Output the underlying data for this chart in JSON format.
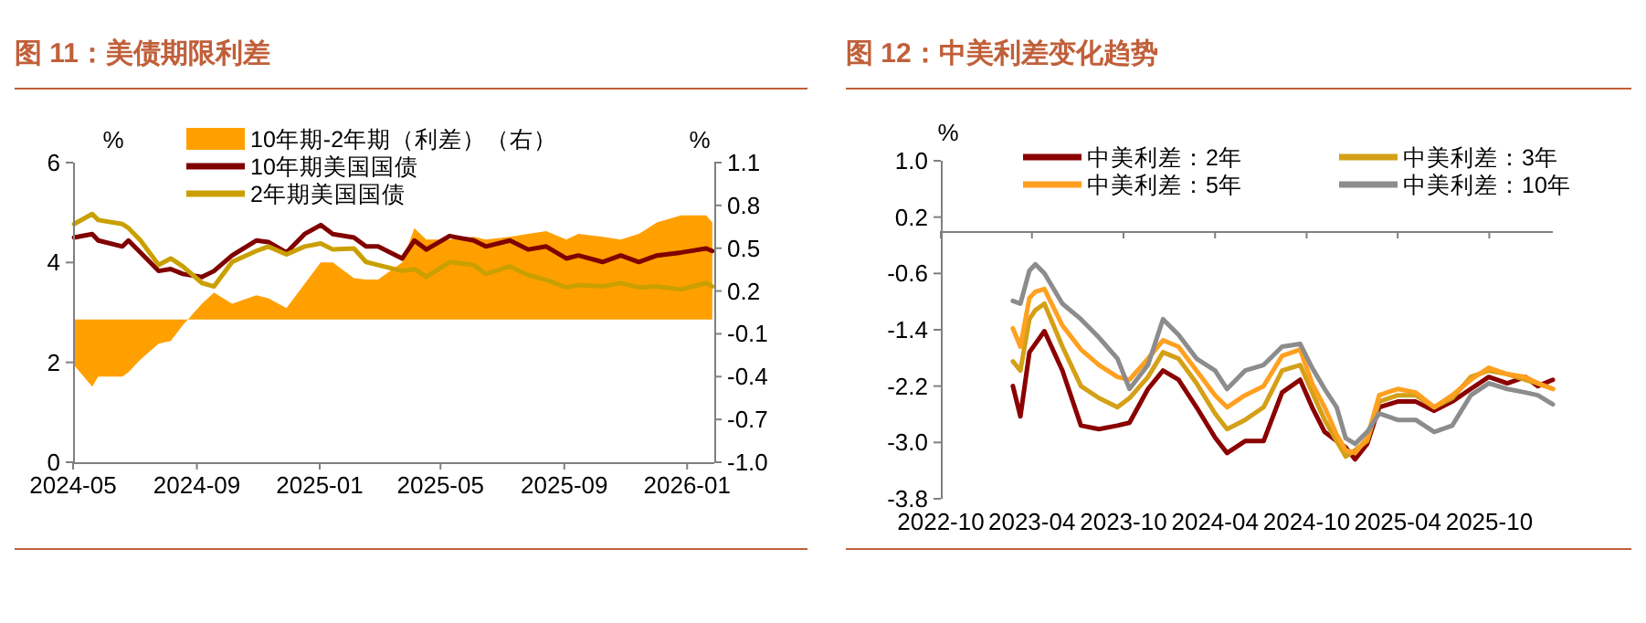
{
  "chart_data": [
    {
      "type": "line",
      "title": "图 11：美债期限利差",
      "ylabel": "%",
      "y2label": "%",
      "legend": "top",
      "x": [
        "2024-05-02",
        "2024-05-20",
        "2024-05-26",
        "2024-06-19",
        "2024-06-25",
        "2024-07-07",
        "2024-07-25",
        "2024-08-06",
        "2024-08-18",
        "2024-09-06",
        "2024-09-18",
        "2024-10-06",
        "2024-10-30",
        "2024-11-11",
        "2024-11-29",
        "2024-12-17",
        "2025-01-02",
        "2025-01-14",
        "2025-02-04",
        "2025-02-16",
        "2025-02-28",
        "2025-03-24",
        "2025-04-05",
        "2025-04-17",
        "2025-05-10",
        "2025-06-03",
        "2025-06-15",
        "2025-07-09",
        "2025-07-27",
        "2025-08-14",
        "2025-09-03",
        "2025-09-15",
        "2025-10-09",
        "2025-10-27",
        "2025-11-14",
        "2025-12-02",
        "2025-12-26",
        "2026-01-20",
        "2026-01-26"
      ],
      "xlim": [
        "2024-05-01",
        "2026-01-28"
      ],
      "xticks": [
        "2024-05",
        "2024-09",
        "2025-01",
        "2025-05",
        "2025-09",
        "2026-01"
      ],
      "ylim": [
        0,
        6
      ],
      "yticks": [
        0,
        2,
        4,
        6
      ],
      "y2lim": [
        -1.0,
        1.1
      ],
      "y2ticks": [
        {
          "value": -1.0,
          "label": "-1.0"
        },
        -0.7,
        -0.4,
        -0.1,
        0.2,
        0.5,
        0.8,
        1.1
      ],
      "series": [
        {
          "name": "10年期-2年期（利差）（右）",
          "type": "area",
          "axis": "y2",
          "color": "#ffa000",
          "values": [
            -0.32,
            -0.47,
            -0.4,
            -0.4,
            -0.37,
            -0.28,
            -0.17,
            -0.15,
            -0.04,
            0.11,
            0.19,
            0.11,
            0.17,
            0.15,
            0.08,
            0.25,
            0.4,
            0.4,
            0.29,
            0.28,
            0.28,
            0.4,
            0.64,
            0.56,
            0.56,
            0.58,
            0.56,
            0.58,
            0.6,
            0.62,
            0.56,
            0.6,
            0.58,
            0.56,
            0.6,
            0.68,
            0.73,
            0.73,
            0.68
          ]
        },
        {
          "name": "10年期美国国债",
          "type": "line",
          "color": "#800000",
          "values": [
            4.5,
            4.57,
            4.44,
            4.32,
            4.44,
            4.2,
            3.83,
            3.87,
            3.77,
            3.71,
            3.83,
            4.14,
            4.44,
            4.41,
            4.2,
            4.57,
            4.75,
            4.57,
            4.5,
            4.32,
            4.32,
            4.08,
            4.44,
            4.26,
            4.53,
            4.44,
            4.32,
            4.44,
            4.26,
            4.32,
            4.08,
            4.14,
            4.01,
            4.14,
            4.01,
            4.14,
            4.2,
            4.28,
            4.23
          ]
        },
        {
          "name": "2年期美国国债",
          "type": "line",
          "color": "#c9a000",
          "values": [
            4.77,
            4.97,
            4.85,
            4.77,
            4.69,
            4.44,
            3.95,
            4.08,
            3.92,
            3.59,
            3.52,
            4.01,
            4.23,
            4.32,
            4.16,
            4.32,
            4.38,
            4.26,
            4.28,
            4.01,
            3.95,
            3.83,
            3.87,
            3.71,
            4.01,
            3.95,
            3.77,
            3.92,
            3.75,
            3.65,
            3.5,
            3.55,
            3.52,
            3.59,
            3.5,
            3.52,
            3.46,
            3.59,
            3.52
          ]
        }
      ]
    },
    {
      "type": "line",
      "title": "图 12：中美利差变化趋势",
      "ylabel": "%",
      "legend": "top",
      "x": [
        "2023-02-22",
        "2023-03-09",
        "2023-03-27",
        "2023-04-08",
        "2023-04-26",
        "2023-06-01",
        "2023-07-08",
        "2023-08-13",
        "2023-09-19",
        "2023-10-13",
        "2023-11-19",
        "2023-12-19",
        "2024-01-19",
        "2024-02-24",
        "2024-04-01",
        "2024-04-25",
        "2024-05-31",
        "2024-07-07",
        "2024-08-13",
        "2024-09-18",
        "2024-10-12",
        "2024-11-06",
        "2024-11-30",
        "2024-12-18",
        "2025-01-06",
        "2025-01-30",
        "2025-02-23",
        "2025-04-01",
        "2025-05-07",
        "2025-06-13",
        "2025-07-19",
        "2025-08-25",
        "2025-09-30",
        "2025-11-06",
        "2025-12-12",
        "2026-01-06",
        "2026-02-05"
      ],
      "xlim": [
        "2022-10-01",
        "2026-02-05"
      ],
      "xticks": [
        "2022-10",
        "2023-04",
        "2023-10",
        "2024-04",
        "2024-10",
        "2025-04",
        "2025-10"
      ],
      "ylim": [
        -3.8,
        1.0
      ],
      "yticks": [
        {
          "value": -3.8,
          "label": "-3.8"
        },
        {
          "value": -3.0,
          "label": "-3.0"
        },
        -2.2,
        -1.4,
        -0.6,
        0.2,
        {
          "value": 1.0,
          "label": "1.0"
        }
      ],
      "series": [
        {
          "name": "中美利差：2年",
          "color": "#8b0000",
          "values": [
            -2.2,
            -2.63,
            -1.72,
            -1.6,
            -1.42,
            -1.98,
            -2.76,
            -2.81,
            -2.76,
            -2.72,
            -2.24,
            -1.98,
            -2.11,
            -2.5,
            -2.93,
            -3.15,
            -2.98,
            -2.98,
            -2.29,
            -2.11,
            -2.5,
            -2.85,
            -2.98,
            -3.07,
            -3.24,
            -3.02,
            -2.5,
            -2.42,
            -2.42,
            -2.55,
            -2.42,
            -2.24,
            -2.07,
            -2.16,
            -2.07,
            -2.2,
            -2.11
          ]
        },
        {
          "name": "中美利差：3年",
          "color": "#d4a017",
          "values": [
            -1.85,
            -1.98,
            -1.25,
            -1.12,
            -1.03,
            -1.64,
            -2.2,
            -2.37,
            -2.5,
            -2.37,
            -2.07,
            -1.72,
            -1.81,
            -2.16,
            -2.59,
            -2.81,
            -2.68,
            -2.5,
            -1.98,
            -1.9,
            -2.29,
            -2.68,
            -2.98,
            -3.2,
            -3.11,
            -2.98,
            -2.42,
            -2.33,
            -2.33,
            -2.5,
            -2.37,
            -2.07,
            -1.98,
            -2.03,
            -2.11,
            -2.16,
            -2.24
          ]
        },
        {
          "name": "中美利差：5年",
          "color": "#ffa020",
          "values": [
            -1.38,
            -1.64,
            -0.95,
            -0.86,
            -0.82,
            -1.34,
            -1.68,
            -1.9,
            -2.07,
            -2.11,
            -1.81,
            -1.55,
            -1.64,
            -1.98,
            -2.33,
            -2.5,
            -2.33,
            -2.2,
            -1.77,
            -1.68,
            -2.16,
            -2.5,
            -2.89,
            -3.11,
            -3.15,
            -2.94,
            -2.33,
            -2.24,
            -2.29,
            -2.5,
            -2.33,
            -2.11,
            -1.94,
            -2.03,
            -2.07,
            -2.16,
            -2.24
          ]
        },
        {
          "name": "中美利差：10年",
          "color": "#8c8c8c",
          "values": [
            -0.99,
            -1.03,
            -0.56,
            -0.47,
            -0.6,
            -1.03,
            -1.25,
            -1.51,
            -1.81,
            -2.24,
            -1.9,
            -1.25,
            -1.47,
            -1.81,
            -1.98,
            -2.24,
            -1.98,
            -1.9,
            -1.64,
            -1.6,
            -1.94,
            -2.24,
            -2.5,
            -2.94,
            -3.02,
            -2.85,
            -2.59,
            -2.68,
            -2.68,
            -2.85,
            -2.76,
            -2.33,
            -2.16,
            -2.24,
            -2.29,
            -2.33,
            -2.46
          ]
        }
      ]
    }
  ]
}
